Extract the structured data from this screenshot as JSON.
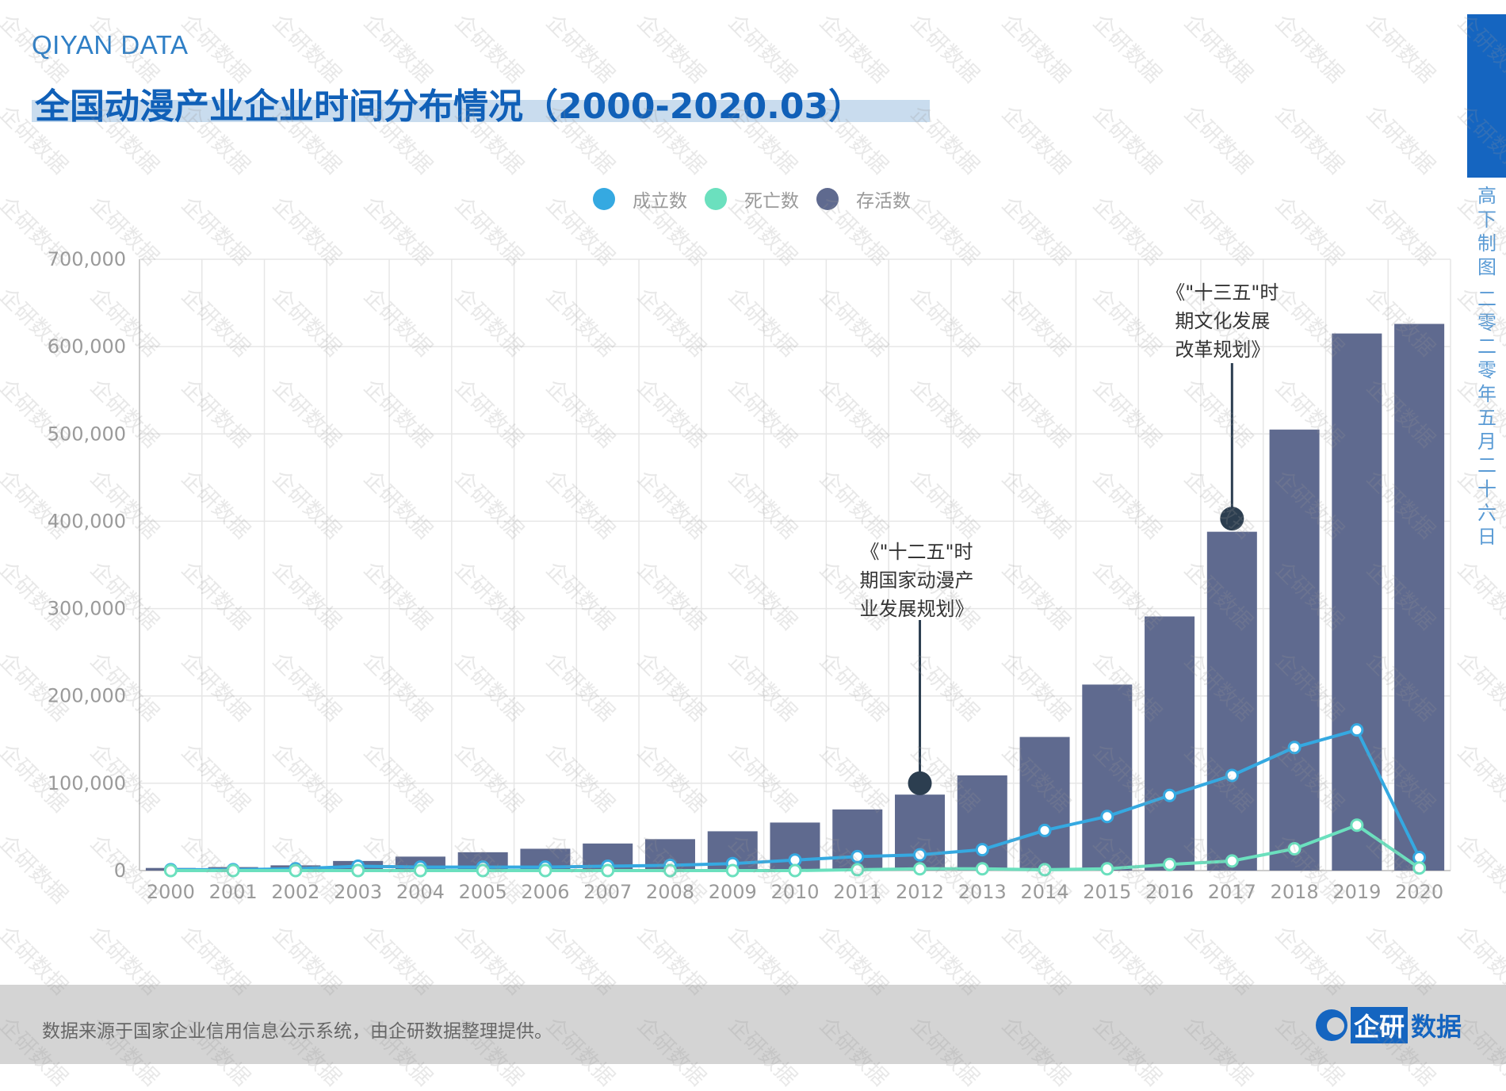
{
  "header": {
    "brand": "QIYAN DATA",
    "title": "全国动漫产业企业时间分布情况（2000-2020.03）"
  },
  "side": {
    "author": "高下制图",
    "date": "二零二零年五月二十六日"
  },
  "footer": {
    "source": "数据来源于国家企业信用信息公示系统，由企研数据整理提供。",
    "logo_text_a": "企研",
    "logo_text_b": "数据"
  },
  "watermark": "企研数据",
  "colors": {
    "founded": "#35a9e1",
    "dead": "#6be0be",
    "alive": "#5f6a8f",
    "annotation": "#2c3e50",
    "title": "#1060b8"
  },
  "chart_data": {
    "type": "bar+line",
    "categories": [
      "2000",
      "2001",
      "2002",
      "2003",
      "2004",
      "2005",
      "2006",
      "2007",
      "2008",
      "2009",
      "2010",
      "2011",
      "2012",
      "2013",
      "2014",
      "2015",
      "2016",
      "2017",
      "2018",
      "2019",
      "2020"
    ],
    "series": [
      {
        "name": "成立数",
        "type": "line",
        "color": "#35a9e1",
        "values": [
          1000,
          1000,
          2000,
          5000,
          4000,
          4000,
          4000,
          5000,
          6000,
          8000,
          12000,
          16000,
          18000,
          24000,
          46000,
          62000,
          86000,
          109000,
          141000,
          161000,
          15000
        ]
      },
      {
        "name": "死亡数",
        "type": "line",
        "color": "#6be0be",
        "values": [
          0,
          0,
          0,
          0,
          0,
          0,
          0,
          0,
          0,
          0,
          0,
          1000,
          2000,
          2000,
          1000,
          2000,
          7000,
          11000,
          25000,
          52000,
          3000
        ]
      },
      {
        "name": "存活数",
        "type": "bar",
        "color": "#5f6a8f",
        "values": [
          3000,
          4000,
          6000,
          11000,
          16000,
          21000,
          25000,
          31000,
          36000,
          45000,
          55000,
          70000,
          87000,
          109000,
          153000,
          213000,
          291000,
          388000,
          505000,
          615000,
          626000
        ]
      }
    ],
    "yticks": [
      "0",
      "100,000",
      "200,000",
      "300,000",
      "400,000",
      "500,000",
      "600,000",
      "700,000"
    ],
    "ylim": [
      0,
      700000
    ],
    "grid": true,
    "legend": "top-center",
    "annotations": [
      {
        "category": "2012",
        "value": 100000,
        "lines": [
          "《\"十二五\"时",
          "期国家动漫产",
          "业发展规划》"
        ]
      },
      {
        "category": "2017",
        "value": 403000,
        "lines": [
          "《\"十三五\"时",
          "期文化发展",
          "改革规划》"
        ]
      }
    ]
  }
}
